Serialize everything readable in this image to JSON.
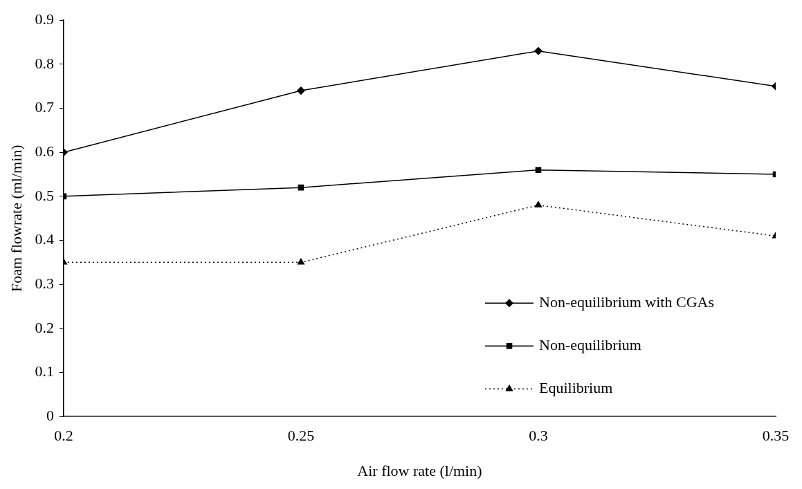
{
  "chart_data": {
    "type": "line",
    "xlabel": "Air flow rate (l/min)",
    "ylabel": "Foam flowrate (ml/min)",
    "x": [
      0.2,
      0.25,
      0.3,
      0.35
    ],
    "series": [
      {
        "name": "Non-equilibrium with CGAs",
        "color": "#000000",
        "values": [
          0.6,
          0.74,
          0.83,
          0.75
        ],
        "marker": "diamond",
        "line_style": "solid"
      },
      {
        "name": "Non-equilibrium",
        "color": "#000000",
        "values": [
          0.5,
          0.52,
          0.56,
          0.55
        ],
        "marker": "square",
        "line_style": "solid"
      },
      {
        "name": "Equilibrium",
        "color": "#000000",
        "values": [
          0.35,
          0.35,
          0.48,
          0.41
        ],
        "marker": "triangle",
        "line_style": "dotted"
      }
    ],
    "xlim": [
      0.2,
      0.35
    ],
    "xticks": [
      0.2,
      0.25,
      0.3,
      0.35
    ],
    "ylim": [
      0,
      0.9
    ],
    "yticks": [
      0,
      0.1,
      0.2,
      0.3,
      0.4,
      0.5,
      0.6,
      0.7,
      0.8,
      0.9
    ],
    "grid": false,
    "legend": "bottom right"
  }
}
